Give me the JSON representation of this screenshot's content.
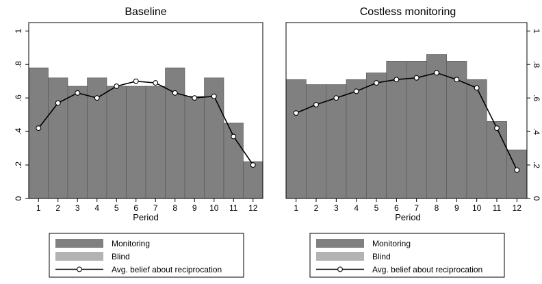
{
  "colors": {
    "monitoring": "#808080",
    "blind": "#b3b3b3",
    "plot_bg": "#ffffff",
    "belief_line": "#000000"
  },
  "chart_data": [
    {
      "type": "bar",
      "title": "Baseline",
      "xlabel": "Period",
      "ylabel": "",
      "categories": [
        "1",
        "2",
        "3",
        "4",
        "5",
        "6",
        "7",
        "8",
        "9",
        "10",
        "11",
        "12"
      ],
      "ylim": [
        0,
        1.05
      ],
      "yticks": [
        0,
        0.2,
        0.4,
        0.6,
        0.8,
        1
      ],
      "ytick_labels": [
        "0",
        ".2",
        ".4",
        ".6",
        ".8",
        "1"
      ],
      "ytick_side": "left",
      "grid": false,
      "series": [
        {
          "name": "Monitoring",
          "kind": "bar",
          "values": [
            0.78,
            0.72,
            0.67,
            0.72,
            0.67,
            0.67,
            0.67,
            0.78,
            0.61,
            0.72,
            0.45,
            0.22
          ]
        },
        {
          "name": "Avg. belief about reciprocation",
          "kind": "line",
          "values": [
            0.42,
            0.57,
            0.63,
            0.6,
            0.67,
            0.7,
            0.69,
            0.63,
            0.6,
            0.61,
            0.37,
            0.2
          ]
        }
      ],
      "legend": {
        "position": "bottom",
        "entries": [
          {
            "label": "Monitoring",
            "type": "bar-fill",
            "color": "#808080"
          },
          {
            "label": "Blind",
            "type": "bar-fill",
            "color": "#b3b3b3"
          },
          {
            "label": "Avg. belief about reciprocation",
            "type": "line-marker",
            "color": "#000000"
          }
        ]
      }
    },
    {
      "type": "bar",
      "title": "Costless monitoring",
      "xlabel": "Period",
      "ylabel": "",
      "categories": [
        "1",
        "2",
        "3",
        "4",
        "5",
        "6",
        "7",
        "8",
        "9",
        "10",
        "11",
        "12"
      ],
      "ylim": [
        0,
        1.05
      ],
      "yticks": [
        0,
        0.2,
        0.4,
        0.6,
        0.8,
        1
      ],
      "ytick_labels": [
        "0",
        ".2",
        ".4",
        ".6",
        ".8",
        "1"
      ],
      "ytick_side": "right",
      "grid": false,
      "series": [
        {
          "name": "Monitoring",
          "kind": "bar",
          "values": [
            0.71,
            0.68,
            0.68,
            0.71,
            0.75,
            0.82,
            0.82,
            0.86,
            0.82,
            0.71,
            0.46,
            0.29
          ]
        },
        {
          "name": "Avg. belief about reciprocation",
          "kind": "line",
          "values": [
            0.51,
            0.56,
            0.6,
            0.64,
            0.69,
            0.71,
            0.72,
            0.75,
            0.71,
            0.66,
            0.42,
            0.17
          ]
        }
      ],
      "legend": {
        "position": "bottom",
        "entries": [
          {
            "label": "Monitoring",
            "type": "bar-fill",
            "color": "#808080"
          },
          {
            "label": "Blind",
            "type": "bar-fill",
            "color": "#b3b3b3"
          },
          {
            "label": "Avg. belief about reciprocation",
            "type": "line-marker",
            "color": "#000000"
          }
        ]
      }
    }
  ]
}
